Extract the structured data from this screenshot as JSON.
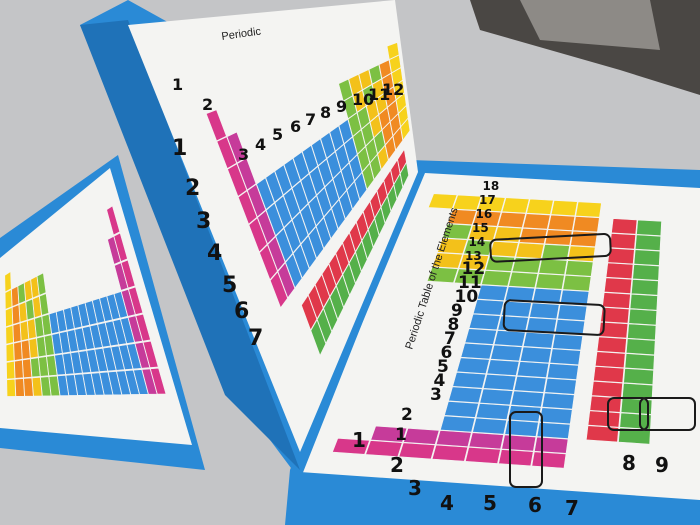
{
  "scene": {
    "description_free": true,
    "right_page_title": "Periodic Table of the Elements",
    "middle_page_title": "Periodic"
  },
  "palette": {
    "folder_blue": "#2a8ad6",
    "page_white": "#f4f4f2",
    "desk": "#c4c5c7",
    "alkali": "#d8378a",
    "alkaline": "#c63b9a",
    "transition": "#3b8fdc",
    "metalloid": "#7cc043",
    "nonmetal": "#f3c11a",
    "halogen": "#f08a22",
    "noble": "#f7d21c",
    "lanthanide": "#e0384a",
    "actinide": "#55b04a",
    "marker_box": "#1a1a1a"
  },
  "handwriting": {
    "periods": [
      "1",
      "2",
      "3",
      "4",
      "5",
      "6",
      "7"
    ],
    "groups_right": [
      "1",
      "2",
      "3",
      "4",
      "5",
      "6",
      "7",
      "8",
      "9",
      "10",
      "11",
      "12",
      "13",
      "14",
      "15",
      "16",
      "17",
      "18"
    ],
    "groups_middle": [
      "1",
      "2",
      "3",
      "4",
      "5",
      "6",
      "7",
      "8",
      "9",
      "10",
      "11",
      "12"
    ],
    "lanthanide_rows": [
      "8",
      "9"
    ]
  }
}
